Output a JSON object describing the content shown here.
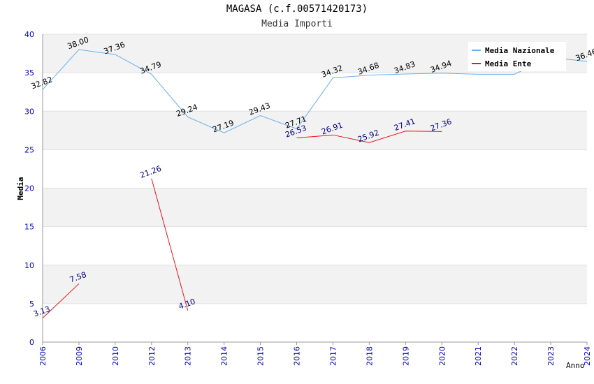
{
  "chart_data": {
    "type": "line",
    "title": "MAGASA (c.f.00571420173)",
    "subtitle": "Media Importi",
    "xlabel": "Anno",
    "ylabel": "Media",
    "ylim": [
      0,
      40
    ],
    "yticks": [
      0,
      5,
      10,
      15,
      20,
      25,
      30,
      35,
      40
    ],
    "categories": [
      "2006",
      "2009",
      "2010",
      "2012",
      "2013",
      "2014",
      "2015",
      "2016",
      "2017",
      "2018",
      "2019",
      "2020",
      "2021",
      "2022",
      "2023",
      "2024"
    ],
    "series": [
      {
        "name": "Media Nazionale",
        "color": "#6aaee8",
        "label_color": "#000000",
        "values": [
          32.82,
          38.0,
          37.36,
          34.79,
          29.24,
          27.19,
          29.43,
          27.71,
          34.32,
          34.68,
          34.83,
          34.94,
          34.8,
          34.8,
          37.0,
          36.46
        ],
        "labels": [
          "32.82",
          "38.00",
          "37.36",
          "34.79",
          "29.24",
          "27.19",
          "29.43",
          "27.71",
          "34.32",
          "34.68",
          "34.83",
          "34.94",
          null,
          null,
          null,
          "36.46"
        ]
      },
      {
        "name": "Media Ente",
        "color": "#e8141e",
        "label_color": "#000080",
        "values": [
          3.13,
          7.58,
          null,
          21.26,
          4.1,
          null,
          null,
          26.53,
          26.91,
          25.92,
          27.41,
          27.36,
          null,
          null,
          null,
          null
        ],
        "labels": [
          "3.13",
          "7.58",
          null,
          "21.26",
          "4.10",
          null,
          null,
          "26.53",
          "26.91",
          "25.92",
          "27.41",
          "27.36",
          null,
          null,
          null,
          null
        ]
      }
    ],
    "grid": true,
    "grid_band_color": "#f2f2f2",
    "axis_tick_color": "#0000c0",
    "legend_position": "top-right"
  }
}
